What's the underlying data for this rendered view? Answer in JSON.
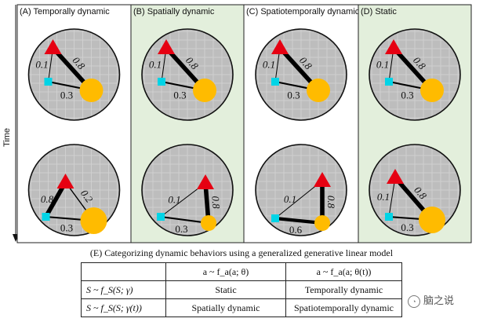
{
  "time_axis_label": "Time",
  "panels": [
    {
      "id": "A",
      "title": "(A) Temporally dynamic",
      "highlight": false,
      "states": [
        {
          "w_tri_cir": "0.8",
          "w_tri_sq": "0.1",
          "w_sq_cir": "0.3"
        },
        {
          "w_tri_cir": "0.2",
          "w_tri_sq": "0.8",
          "w_sq_cir": "0.3"
        }
      ]
    },
    {
      "id": "B",
      "title": "(B) Spatially dynamic",
      "highlight": true,
      "states": [
        {
          "w_tri_cir": "0.8",
          "w_tri_sq": "0.1",
          "w_sq_cir": "0.3"
        },
        {
          "w_tri_cir": "0.8",
          "w_tri_sq": "0.1",
          "w_sq_cir": "0.3"
        }
      ]
    },
    {
      "id": "C",
      "title": "(C) Spatiotemporally dynamic",
      "highlight": false,
      "states": [
        {
          "w_tri_cir": "0.8",
          "w_tri_sq": "0.1",
          "w_sq_cir": "0.3"
        },
        {
          "w_tri_cir": "0.8",
          "w_tri_sq": "0.1",
          "w_sq_cir": "0.6"
        }
      ]
    },
    {
      "id": "D",
      "title": "(D) Static",
      "highlight": true,
      "states": [
        {
          "w_tri_cir": "0.8",
          "w_tri_sq": "0.1",
          "w_sq_cir": "0.3"
        },
        {
          "w_tri_cir": "0.8",
          "w_tri_sq": "0.1",
          "w_sq_cir": "0.3"
        }
      ]
    }
  ],
  "caption": "(E) Categorizing dynamic behaviors using a generalized generative linear model",
  "table": {
    "header": [
      "",
      "a ~ f_a(a; θ)",
      "a ~ f_a(a; θ(t))"
    ],
    "rows": [
      [
        "S ~ f_S(S; γ)",
        "Static",
        "Temporally dynamic"
      ],
      [
        "S ~ f_S(S; γ(t))",
        "Spatially dynamic",
        "Spatiotemporally dynamic"
      ]
    ]
  },
  "watermark": "脑之说",
  "colors": {
    "panel_highlight": "#e3efdc",
    "circle_fill": "#bdbdbd",
    "triangle": "#e60012",
    "square": "#00d4e6",
    "node_circle": "#ffbb00"
  }
}
